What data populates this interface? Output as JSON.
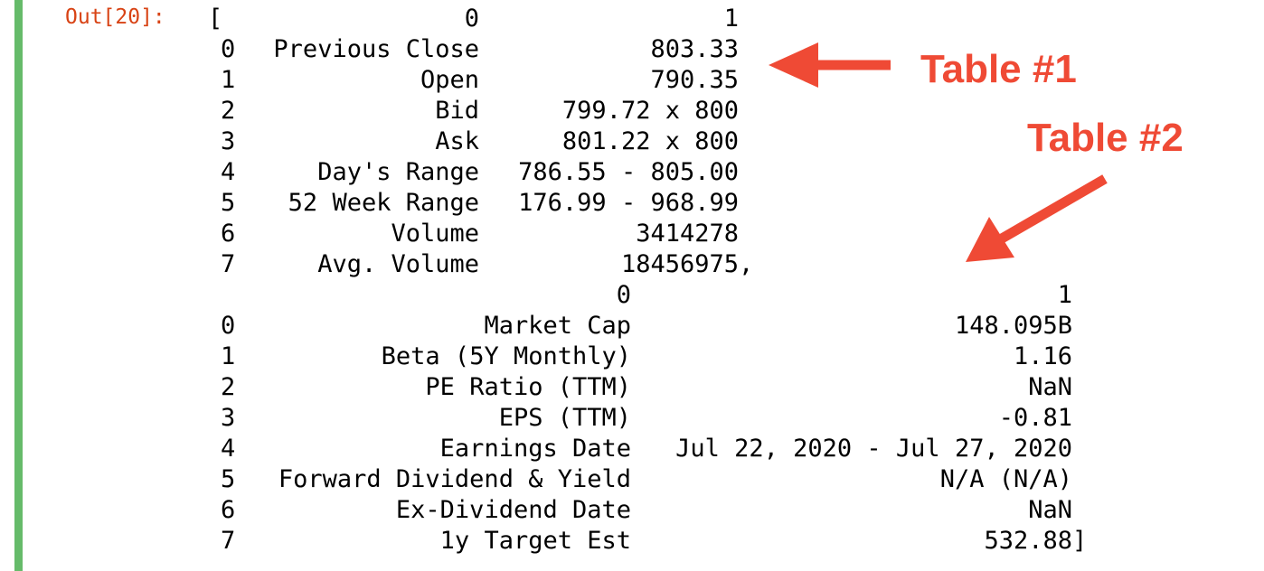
{
  "cell": {
    "prompt": "Out[20]:",
    "open_bracket": "[",
    "list_separator": ",",
    "close_bracket": "]"
  },
  "table1": {
    "columns": [
      "0",
      "1"
    ],
    "rows": [
      {
        "index": "0",
        "label": "Previous Close",
        "value": "803.33"
      },
      {
        "index": "1",
        "label": "Open",
        "value": "790.35"
      },
      {
        "index": "2",
        "label": "Bid",
        "value": "799.72 x 800"
      },
      {
        "index": "3",
        "label": "Ask",
        "value": "801.22 x 800"
      },
      {
        "index": "4",
        "label": "Day's Range",
        "value": "786.55 - 805.00"
      },
      {
        "index": "5",
        "label": "52 Week Range",
        "value": "176.99 - 968.99"
      },
      {
        "index": "6",
        "label": "Volume",
        "value": "3414278"
      },
      {
        "index": "7",
        "label": "Avg. Volume",
        "value": "18456975"
      }
    ]
  },
  "table2": {
    "columns": [
      "0",
      "1"
    ],
    "rows": [
      {
        "index": "0",
        "label": "Market Cap",
        "value": "148.095B"
      },
      {
        "index": "1",
        "label": "Beta (5Y Monthly)",
        "value": "1.16"
      },
      {
        "index": "2",
        "label": "PE Ratio (TTM)",
        "value": "NaN"
      },
      {
        "index": "3",
        "label": "EPS (TTM)",
        "value": "-0.81"
      },
      {
        "index": "4",
        "label": "Earnings Date",
        "value": "Jul 22, 2020 - Jul 27, 2020"
      },
      {
        "index": "5",
        "label": "Forward Dividend & Yield",
        "value": "N/A (N/A)"
      },
      {
        "index": "6",
        "label": "Ex-Dividend Date",
        "value": "NaN"
      },
      {
        "index": "7",
        "label": "1y Target Est",
        "value": "532.88"
      }
    ]
  },
  "annotations": {
    "table1_label": "Table #1",
    "table2_label": "Table #2",
    "color": "#ef4a35"
  },
  "colors": {
    "cell_bar": "#66bb6a",
    "prompt": "#d84315"
  }
}
